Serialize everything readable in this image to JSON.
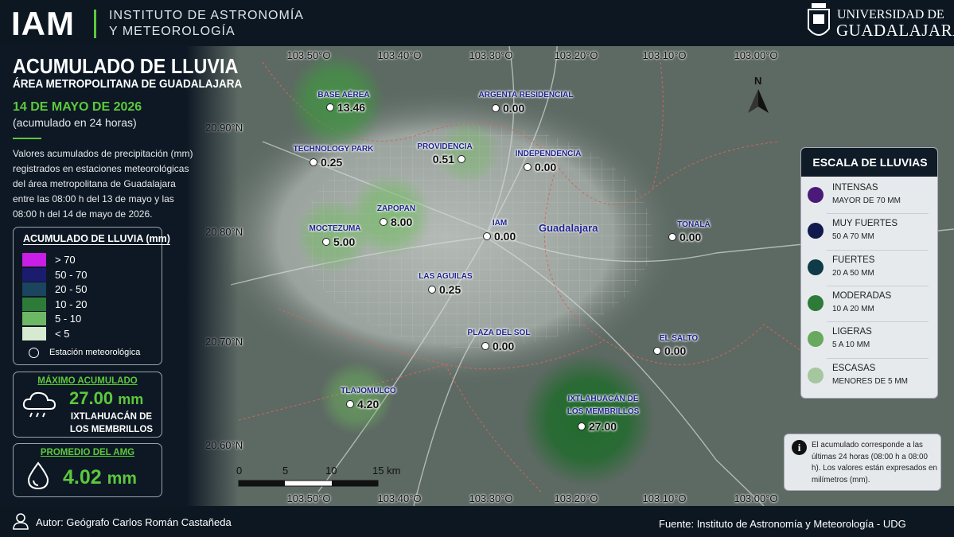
{
  "header": {
    "logo": "IAM",
    "institute_line1": "INSTITUTO DE ASTRONOMÍA",
    "institute_line2": "Y METEOROLOGÍA",
    "university_line1": "UNIVERSIDAD DE",
    "university_line2": "GUADALAJARA"
  },
  "sidebar": {
    "title": "ACUMULADO DE LLUVIA",
    "subtitle": "ÁREA METROPOLITANA DE GUADALAJARA",
    "date": "14 DE MAYO DE 2026",
    "period": "(acumulado en 24 horas)",
    "description": "Valores acumulados de precipitación (mm) registrados en estaciones meteorológicas del área metropolitana de Guadalajara entre las 08:00 h del 13 de mayo y las 08:00 h del 14 de mayo de 2026.",
    "legend": {
      "title": "ACUMULADO DE LLUVIA (mm)",
      "items": [
        {
          "label": "> 70",
          "color": "#c81ee6"
        },
        {
          "label": "50 - 70",
          "color": "#1b1c6e"
        },
        {
          "label": "20 - 50",
          "color": "#1b445e"
        },
        {
          "label": "10 - 20",
          "color": "#2d7b39"
        },
        {
          "label": "5 - 10",
          "color": "#6db865"
        },
        {
          "label": "< 5",
          "color": "#d5ead0"
        }
      ],
      "station": "Estación meteorológica"
    },
    "maximum": {
      "title": "MÁXIMO ACUMULADO",
      "value": "27.00",
      "unit": "mm",
      "station": "IXTLAHUACÁN DE LOS MEMBRILLOS"
    },
    "average": {
      "title": "PROMEDIO DEL AMG",
      "value": "4.02",
      "unit": "mm"
    }
  },
  "map": {
    "lon_labels": [
      "103.50°O",
      "103.40°O",
      "103.30°O",
      "103.20°O",
      "103.10°O",
      "103.00°O"
    ],
    "lat_labels": [
      "20.90°N",
      "20.80°N",
      "20.70°N",
      "20.60°N"
    ],
    "north": "N",
    "city": "Guadalajara",
    "scale_labels": [
      "0",
      "5",
      "10",
      "15 km"
    ],
    "stations": [
      {
        "name": "BASE AÉREA",
        "value": 13.46,
        "value_label": "13.46"
      },
      {
        "name": "ARGENTA RESIDENCIAL",
        "value": 0,
        "value_label": "0.00"
      },
      {
        "name": "TECHNOLOGY PARK",
        "value": 0.25,
        "value_label": "0.25"
      },
      {
        "name": "PROVIDENCIA",
        "value": 0.51,
        "value_label": "0.51"
      },
      {
        "name": "INDEPENDENCIA",
        "value": 0,
        "value_label": "0.00"
      },
      {
        "name": "ZAPOPAN",
        "value": 8,
        "value_label": "8.00"
      },
      {
        "name": "IAM",
        "value": 0,
        "value_label": "0.00"
      },
      {
        "name": "TONALÁ",
        "value": 0,
        "value_label": "0.00"
      },
      {
        "name": "MOCTEZUMA",
        "value": 5,
        "value_label": "5.00"
      },
      {
        "name": "LAS AGUILAS",
        "value": 0.25,
        "value_label": "0.25"
      },
      {
        "name": "PLAZA DEL SOL",
        "value": 0,
        "value_label": "0.00"
      },
      {
        "name": "EL SALTO",
        "value": 0,
        "value_label": "0.00"
      },
      {
        "name": "TLAJOMULCO",
        "value": 4.2,
        "value_label": "4.20"
      },
      {
        "name": "IXTLAHUACÁN DE LOS MEMBRILLOS",
        "value": 27,
        "value_label": "27.00"
      }
    ]
  },
  "scale_panel": {
    "title": "ESCALA DE LLUVIAS",
    "items": [
      {
        "name": "INTENSAS",
        "description": "MAYOR DE 70 MM",
        "color": "#4a1a78"
      },
      {
        "name": "MUY FUERTES",
        "description": "50 A 70 MM",
        "color": "#121a4d"
      },
      {
        "name": "FUERTES",
        "description": "20 A 50 MM",
        "color": "#0f3a47"
      },
      {
        "name": "MODERADAS",
        "description": "10 A 20 MM",
        "color": "#2e7b39"
      },
      {
        "name": "LIGERAS",
        "description": "5 A 10 MM",
        "color": "#69a85f"
      },
      {
        "name": "ESCASAS",
        "description": "MENORES DE 5 MM",
        "color": "#a5c79f"
      }
    ]
  },
  "note": {
    "text": "El acumulado corresponde a las últimas 24 horas (08:00 h a 08:00 h). Los valores están expresados en milímetros (mm)."
  },
  "footer": {
    "author": "Autor: Geógrafo Carlos Román Castañeda",
    "source": "Fuente: Instituto de Astronomía y Meteorología - UDG"
  }
}
